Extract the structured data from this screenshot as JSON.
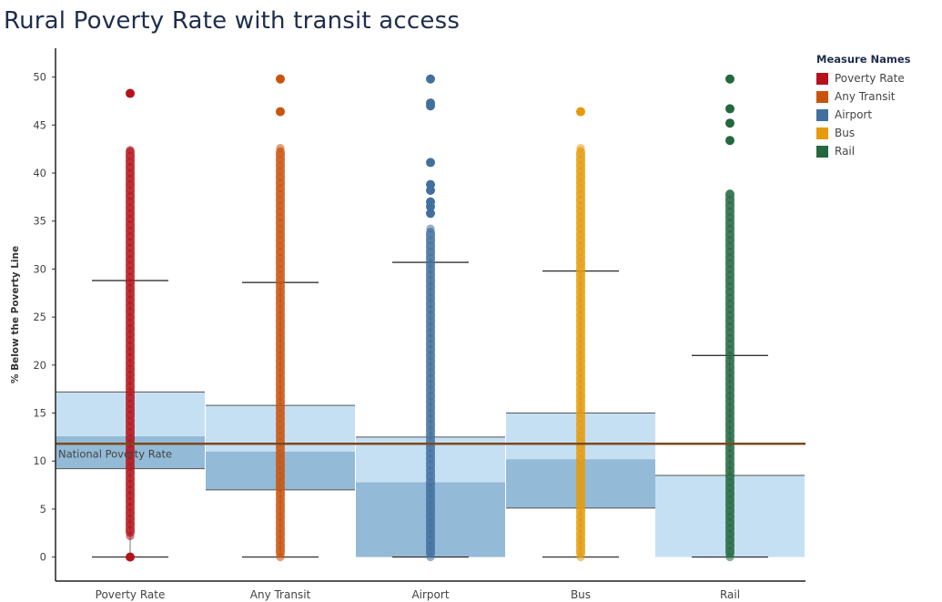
{
  "chart_data": {
    "type": "boxplot",
    "title": "Rural Poverty Rate with transit access",
    "xlabel": "",
    "ylabel": "% Below the Poverty Line",
    "ylim": [
      -2.5,
      53
    ],
    "yticks": [
      0,
      5,
      10,
      15,
      20,
      25,
      30,
      35,
      40,
      45,
      50
    ],
    "grid": false,
    "legend_placement": "top-right",
    "legend_title": "Measure Names",
    "reference_line": {
      "label": "National Poverty Rate",
      "value": 11.8,
      "color": "#7b4a1e"
    },
    "categories": [
      "Poverty Rate",
      "Any Transit",
      "Airport",
      "Bus",
      "Rail"
    ],
    "series": [
      {
        "name": "Poverty Rate",
        "color": "#b5121b",
        "box": {
          "whisker_low": 0,
          "q1": 9.2,
          "median": 12.6,
          "q3": 17.2,
          "whisker_high": 28.8
        },
        "dense_range": [
          2.2,
          42.6
        ],
        "outliers": [
          0,
          48.3
        ]
      },
      {
        "name": "Any Transit",
        "color": "#c9540d",
        "box": {
          "whisker_low": 0,
          "q1": 7.0,
          "median": 11.0,
          "q3": 15.8,
          "whisker_high": 28.6
        },
        "dense_range": [
          0,
          42.6
        ],
        "outliers": [
          46.4,
          49.8
        ]
      },
      {
        "name": "Airport",
        "color": "#41709f",
        "box": {
          "whisker_low": 0,
          "q1": 0,
          "median": 7.8,
          "q3": 12.5,
          "whisker_high": 30.7
        },
        "dense_range": [
          0,
          34.2
        ],
        "outliers": [
          35.8,
          36.5,
          37.0,
          38.2,
          38.8,
          41.1,
          47.0,
          47.3,
          49.8
        ]
      },
      {
        "name": "Bus",
        "color": "#e69b0b",
        "box": {
          "whisker_low": 0,
          "q1": 5.1,
          "median": 10.2,
          "q3": 15.0,
          "whisker_high": 29.8
        },
        "dense_range": [
          0,
          42.6
        ],
        "outliers": [
          46.4
        ]
      },
      {
        "name": "Rail",
        "color": "#23683f",
        "box": {
          "whisker_low": 0,
          "q1": 0,
          "median": 0,
          "q3": 8.5,
          "whisker_high": 21.0
        },
        "dense_range": [
          0,
          38.2
        ],
        "outliers": [
          43.4,
          45.2,
          46.7,
          49.8
        ]
      }
    ]
  }
}
